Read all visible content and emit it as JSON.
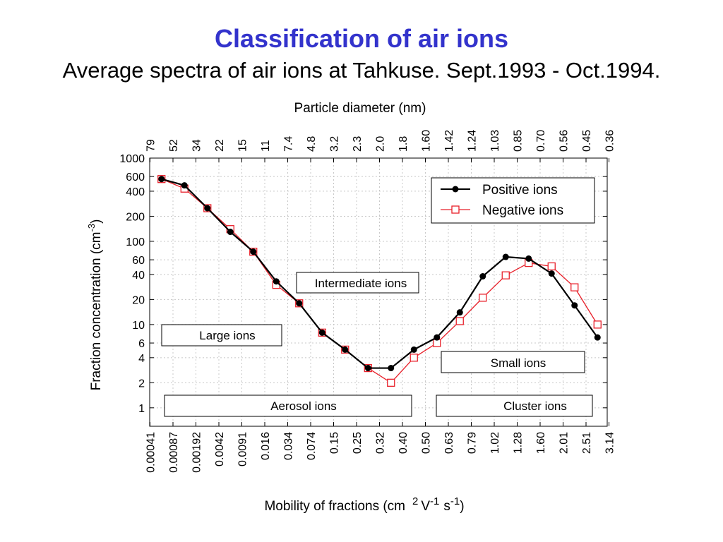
{
  "slide": {
    "title": "Classification of air ions",
    "subtitle": "Average spectra of air ions at Tahkuse. Sept.1993 - Oct.1994."
  },
  "colors": {
    "title": "#3333cc",
    "positive": "#000000",
    "negative": "#e8202a",
    "grid": "#c8c8c8"
  },
  "chart_data": {
    "type": "line",
    "y_scale": "log",
    "ylim": [
      0.6,
      1000
    ],
    "grid": true,
    "legend_position": "top-right",
    "top_axis_label": "Particle diameter  (nm)",
    "top_tick_labels": [
      "79",
      "52",
      "34",
      "22",
      "15",
      "11",
      "7.4",
      "4.8",
      "3.2",
      "2.3",
      "2.0",
      "1.8",
      "1.60",
      "1.42",
      "1.24",
      "1.03",
      "0.85",
      "0.70",
      "0.56",
      "0.45",
      "0.36"
    ],
    "x_tick_labels": [
      "0.00041",
      "0.00087",
      "0.00192",
      "0.0042",
      "0.0091",
      "0.016",
      "0.034",
      "0.074",
      "0.15",
      "0.25",
      "0.32",
      "0.40",
      "0.50",
      "0.63",
      "0.79",
      "1.02",
      "1.28",
      "1.60",
      "2.01",
      "2.51",
      "3.14"
    ],
    "y_ticks": [
      1,
      2,
      4,
      6,
      10,
      20,
      40,
      60,
      100,
      200,
      400,
      600,
      1000
    ],
    "y_tick_labels": [
      "1",
      "2",
      "4",
      "6",
      "10",
      "20",
      "40",
      "60",
      "100",
      "200",
      "400",
      "600",
      "1000"
    ],
    "ylabel": "Fraction concentration  (cm",
    "ylabel_sup": "-3",
    "ylabel_end": ")",
    "xlabel_parts": {
      "a": "Mobility of fractions  (cm",
      "a_sup": "2",
      "b": "V",
      "b_sup": "-1",
      "c": "s",
      "c_sup": "-1",
      "d": ")"
    },
    "series": [
      {
        "name": "Positive ions",
        "marker": "filled-circle",
        "values": [
          560,
          470,
          250,
          130,
          75,
          33,
          18,
          8,
          5,
          3,
          3,
          5,
          7,
          14,
          38,
          65,
          62,
          41,
          17,
          7
        ]
      },
      {
        "name": "Negative ions",
        "marker": "open-square",
        "values": [
          560,
          430,
          250,
          140,
          75,
          30,
          18,
          8,
          5,
          3,
          2,
          4,
          6,
          11,
          21,
          39,
          55,
          50,
          28,
          10
        ]
      }
    ],
    "region_labels": [
      "Large  ions",
      "Intermediate ions",
      "Aerosol  ions",
      "Small  ions",
      "Cluster ions"
    ]
  }
}
